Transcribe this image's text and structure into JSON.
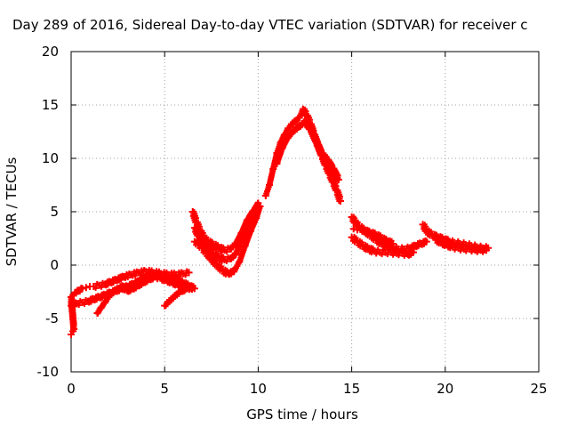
{
  "chart_data": {
    "type": "scatter",
    "title": "Day 289 of 2016, Sidereal Day-to-day VTEC variation (SDTVAR) for receiver c",
    "xlabel": "GPS time / hours",
    "ylabel": "SDTVAR / TECUs",
    "xlim": [
      0,
      25
    ],
    "ylim": [
      -10,
      20
    ],
    "xticks": [
      "0",
      "5",
      "10",
      "15",
      "20",
      "25"
    ],
    "yticks": [
      "-10",
      "-5",
      "0",
      "5",
      "10",
      "15",
      "20"
    ],
    "grid": true,
    "marker": "+",
    "color": "#ff0000",
    "series": [
      {
        "x": [
          0.0,
          0.1,
          0.15,
          0.0,
          0.1,
          0.2,
          0.4,
          0.6,
          0.8,
          1.0,
          1.2,
          1.5,
          1.8,
          2.1,
          2.4,
          2.8,
          3.2,
          3.6,
          4.0,
          4.4,
          4.8,
          5.2,
          5.6,
          6.0,
          6.3
        ],
        "y": [
          -6.5,
          -6.2,
          -6.0,
          -3.0,
          -2.8,
          -2.6,
          -2.4,
          -2.2,
          -2.1,
          -2.0,
          -2.0,
          -1.9,
          -1.8,
          -1.6,
          -1.4,
          -1.1,
          -0.9,
          -0.7,
          -0.6,
          -0.7,
          -0.8,
          -0.9,
          -0.9,
          -0.8,
          -0.7
        ]
      },
      {
        "x": [
          0.0,
          0.3,
          0.6,
          0.9,
          1.2,
          1.5,
          1.8,
          2.1,
          2.4,
          2.7,
          3.0,
          3.3,
          3.6,
          3.9,
          4.2,
          4.5,
          4.8,
          5.1,
          5.4,
          5.7,
          6.0,
          6.3,
          6.6
        ],
        "y": [
          -3.8,
          -3.6,
          -3.5,
          -3.4,
          -3.2,
          -3.0,
          -2.8,
          -2.6,
          -2.4,
          -2.2,
          -2.0,
          -1.8,
          -1.5,
          -1.2,
          -1.0,
          -1.0,
          -1.1,
          -1.2,
          -1.3,
          -1.5,
          -1.7,
          -2.0,
          -2.2
        ]
      },
      {
        "x": [
          1.4,
          1.6,
          1.8,
          2.0,
          2.2,
          2.5,
          2.8,
          3.0,
          3.3,
          3.6,
          3.9,
          4.2,
          4.5,
          4.8,
          5.1,
          5.4,
          5.7,
          6.0
        ],
        "y": [
          -4.5,
          -4.0,
          -3.5,
          -3.0,
          -2.6,
          -2.2,
          -2.0,
          -2.4,
          -2.2,
          -1.9,
          -1.6,
          -1.3,
          -1.1,
          -1.2,
          -1.4,
          -1.6,
          -1.8,
          -2.0
        ]
      },
      {
        "x": [
          5.0,
          5.3,
          5.6,
          5.9,
          6.2,
          6.5
        ],
        "y": [
          -3.8,
          -3.3,
          -2.8,
          -2.4,
          -2.2,
          -2.1
        ]
      },
      {
        "x": [
          6.5,
          6.7,
          6.9,
          7.1,
          7.3,
          7.6,
          7.9,
          8.2,
          8.5,
          8.8,
          9.1,
          9.4,
          9.7,
          10.0
        ],
        "y": [
          5.0,
          4.0,
          3.2,
          2.6,
          2.2,
          1.9,
          1.6,
          1.4,
          1.5,
          2.0,
          3.0,
          4.2,
          5.0,
          5.8
        ]
      },
      {
        "x": [
          6.6,
          6.8,
          7.0,
          7.2,
          7.5,
          7.8,
          8.1,
          8.4,
          8.7,
          9.0,
          9.3,
          9.6,
          9.9,
          10.1
        ],
        "y": [
          2.2,
          2.0,
          1.6,
          1.2,
          0.6,
          0.0,
          -0.5,
          -0.8,
          -0.6,
          0.3,
          1.8,
          3.2,
          4.4,
          5.5
        ]
      },
      {
        "x": [
          6.6,
          6.8,
          7.0,
          7.3,
          7.6,
          7.9,
          8.2,
          8.5,
          8.8,
          9.1,
          9.4,
          9.7,
          10.0
        ],
        "y": [
          3.5,
          2.8,
          2.2,
          1.6,
          1.1,
          0.7,
          0.5,
          0.6,
          1.0,
          2.2,
          3.6,
          4.8,
          5.5
        ]
      },
      {
        "x": [
          10.4,
          10.6,
          10.8,
          11.0,
          11.2,
          11.4,
          11.6,
          11.8,
          12.0,
          12.2,
          12.4,
          12.6,
          12.8,
          13.0,
          13.2,
          13.4,
          13.6,
          13.8,
          14.0,
          14.2,
          14.4
        ],
        "y": [
          6.5,
          7.5,
          9.0,
          10.5,
          11.5,
          12.2,
          12.8,
          13.2,
          13.5,
          13.8,
          14.6,
          14.0,
          13.2,
          12.2,
          11.2,
          10.3,
          9.4,
          8.6,
          7.8,
          7.0,
          6.0
        ]
      },
      {
        "x": [
          11.0,
          11.3,
          11.6,
          11.9,
          12.2,
          12.5,
          12.8,
          13.1,
          13.4,
          13.7,
          14.0,
          14.3
        ],
        "y": [
          9.5,
          11.0,
          12.0,
          12.6,
          13.0,
          13.4,
          12.8,
          11.6,
          10.4,
          9.8,
          9.0,
          8.0
        ]
      },
      {
        "x": [
          15.0,
          15.2,
          15.4,
          15.7,
          16.0,
          16.3,
          16.6,
          16.9,
          17.2,
          17.5,
          17.8,
          18.1,
          18.4,
          18.7,
          19.0
        ],
        "y": [
          4.5,
          4.0,
          3.6,
          3.2,
          2.8,
          2.4,
          2.0,
          1.8,
          1.6,
          1.5,
          1.5,
          1.6,
          1.8,
          2.0,
          2.2
        ]
      },
      {
        "x": [
          15.0,
          15.3,
          15.6,
          15.9,
          16.2,
          16.5,
          16.8,
          17.1,
          17.4,
          17.7,
          18.0,
          18.3
        ],
        "y": [
          2.6,
          2.2,
          1.8,
          1.5,
          1.3,
          1.2,
          1.2,
          1.2,
          1.1,
          1.1,
          1.0,
          1.2
        ]
      },
      {
        "x": [
          15.1,
          15.3,
          15.5,
          15.7,
          16.0,
          16.3,
          16.6,
          16.9,
          17.2
        ],
        "y": [
          3.4,
          3.3,
          3.4,
          3.2,
          3.0,
          2.8,
          2.5,
          2.2,
          2.0
        ]
      },
      {
        "x": [
          18.8,
          19.0,
          19.3,
          19.6,
          19.9,
          20.2,
          20.5,
          20.8,
          21.1,
          21.4,
          21.7,
          22.0,
          22.3
        ],
        "y": [
          3.8,
          3.2,
          2.8,
          2.6,
          2.4,
          2.2,
          2.1,
          2.0,
          1.9,
          1.8,
          1.7,
          1.6,
          1.6
        ]
      },
      {
        "x": [
          19.5,
          19.8,
          20.1,
          20.4,
          20.7,
          21.0,
          21.3,
          21.6,
          21.9,
          22.2
        ],
        "y": [
          2.4,
          2.1,
          1.9,
          1.7,
          1.6,
          1.5,
          1.5,
          1.4,
          1.4,
          1.4
        ]
      }
    ]
  }
}
